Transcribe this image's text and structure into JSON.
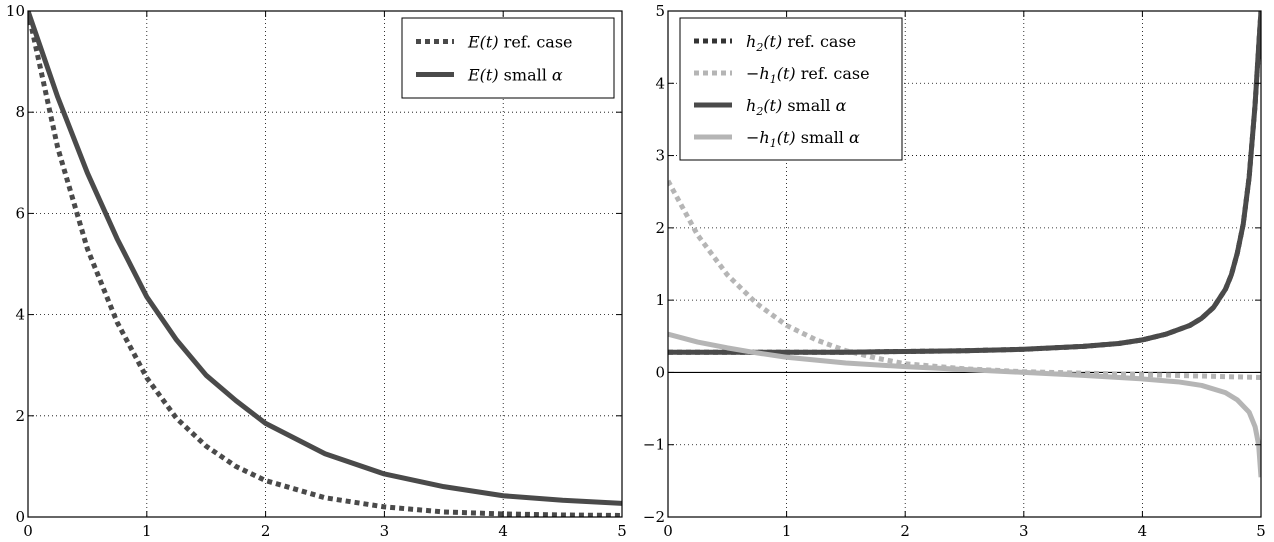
{
  "chart_data": [
    {
      "type": "line",
      "title": "",
      "xlabel": "",
      "ylabel": "",
      "xlim": [
        0,
        5
      ],
      "ylim": [
        0,
        10
      ],
      "xticks": [
        "0",
        "1",
        "2",
        "3",
        "4",
        "5"
      ],
      "yticks": [
        "0",
        "2",
        "4",
        "6",
        "8",
        "10"
      ],
      "grid": true,
      "legend_position": "top-right",
      "series": [
        {
          "name": "E(t) ref. case",
          "name_parts": {
            "math": "E(t)",
            "text": " ref. case"
          },
          "style": "dotted",
          "color": "#4a4a4a",
          "x": [
            0,
            0.25,
            0.5,
            0.75,
            1,
            1.25,
            1.5,
            1.75,
            2,
            2.5,
            3,
            3.5,
            4,
            4.5,
            5
          ],
          "values": [
            10,
            7.3,
            5.3,
            3.85,
            2.75,
            1.95,
            1.4,
            1.0,
            0.72,
            0.38,
            0.2,
            0.1,
            0.06,
            0.04,
            0.03
          ]
        },
        {
          "name": "E(t) small α",
          "name_parts": {
            "math": "E(t)",
            "text": " small ",
            "greek": "α"
          },
          "style": "solid",
          "color": "#4a4a4a",
          "x": [
            0,
            0.25,
            0.5,
            0.75,
            1,
            1.25,
            1.5,
            1.75,
            2,
            2.5,
            3,
            3.5,
            4,
            4.5,
            5
          ],
          "values": [
            10,
            8.3,
            6.8,
            5.5,
            4.35,
            3.5,
            2.8,
            2.3,
            1.85,
            1.25,
            0.85,
            0.6,
            0.42,
            0.33,
            0.27
          ]
        }
      ]
    },
    {
      "type": "line",
      "title": "",
      "xlabel": "",
      "ylabel": "",
      "xlim": [
        0,
        5
      ],
      "ylim": [
        -2,
        5
      ],
      "xticks": [
        "0",
        "1",
        "2",
        "3",
        "4",
        "5"
      ],
      "yticks": [
        "−2",
        "−1",
        "0",
        "1",
        "2",
        "3",
        "4",
        "5"
      ],
      "grid": true,
      "zero_line": true,
      "legend_position": "top-left",
      "series": [
        {
          "name": "h2(t) ref. case",
          "name_parts": {
            "math": "h",
            "sub": "2",
            "math2": "(t)",
            "text": " ref. case"
          },
          "style": "dotted",
          "color": "#333333",
          "x": [
            0,
            0.5,
            1,
            1.5,
            2,
            2.5,
            3,
            3.5,
            3.8,
            4,
            4.2,
            4.4,
            4.5,
            4.6,
            4.7,
            4.75,
            4.8,
            4.85,
            4.9,
            4.95,
            4.98,
            5
          ],
          "values": [
            0.28,
            0.28,
            0.28,
            0.28,
            0.29,
            0.3,
            0.32,
            0.36,
            0.4,
            0.45,
            0.53,
            0.65,
            0.75,
            0.9,
            1.15,
            1.35,
            1.65,
            2.05,
            2.7,
            3.7,
            4.5,
            5.0
          ]
        },
        {
          "name": "−h1(t) ref. case",
          "name_parts": {
            "prefix": "−",
            "math": "h",
            "sub": "1",
            "math2": "(t)",
            "text": " ref. case"
          },
          "style": "dotted",
          "color": "#b5b5b5",
          "x": [
            0,
            0.25,
            0.5,
            0.75,
            1,
            1.25,
            1.5,
            1.75,
            2,
            2.5,
            3,
            3.5,
            4,
            4.5,
            5
          ],
          "values": [
            2.65,
            1.9,
            1.35,
            0.95,
            0.65,
            0.45,
            0.3,
            0.2,
            0.12,
            0.05,
            0.01,
            -0.01,
            -0.03,
            -0.05,
            -0.07
          ]
        },
        {
          "name": "h2(t) small α",
          "name_parts": {
            "math": "h",
            "sub": "2",
            "math2": "(t)",
            "text": " small ",
            "greek": "α"
          },
          "style": "solid",
          "color": "#4a4a4a",
          "x": [
            0,
            0.5,
            1,
            1.5,
            2,
            2.5,
            3,
            3.5,
            3.8,
            4,
            4.2,
            4.4,
            4.5,
            4.6,
            4.7,
            4.75,
            4.8,
            4.85,
            4.9,
            4.95,
            4.98,
            5
          ],
          "values": [
            0.28,
            0.28,
            0.28,
            0.28,
            0.29,
            0.3,
            0.32,
            0.36,
            0.4,
            0.45,
            0.53,
            0.65,
            0.75,
            0.9,
            1.15,
            1.35,
            1.65,
            2.05,
            2.7,
            3.7,
            4.5,
            5.0
          ]
        },
        {
          "name": "−h1(t) small α",
          "name_parts": {
            "prefix": "−",
            "math": "h",
            "sub": "1",
            "math2": "(t)",
            "text": " small ",
            "greek": "α"
          },
          "style": "solid",
          "color": "#b5b5b5",
          "x": [
            0,
            0.25,
            0.5,
            0.75,
            1,
            1.5,
            2,
            2.5,
            3,
            3.5,
            4,
            4.3,
            4.5,
            4.7,
            4.8,
            4.9,
            4.95,
            4.98,
            5
          ],
          "values": [
            0.53,
            0.42,
            0.34,
            0.27,
            0.21,
            0.13,
            0.08,
            0.04,
            0.0,
            -0.04,
            -0.09,
            -0.13,
            -0.18,
            -0.28,
            -0.38,
            -0.55,
            -0.75,
            -1.0,
            -1.45
          ]
        }
      ]
    }
  ]
}
